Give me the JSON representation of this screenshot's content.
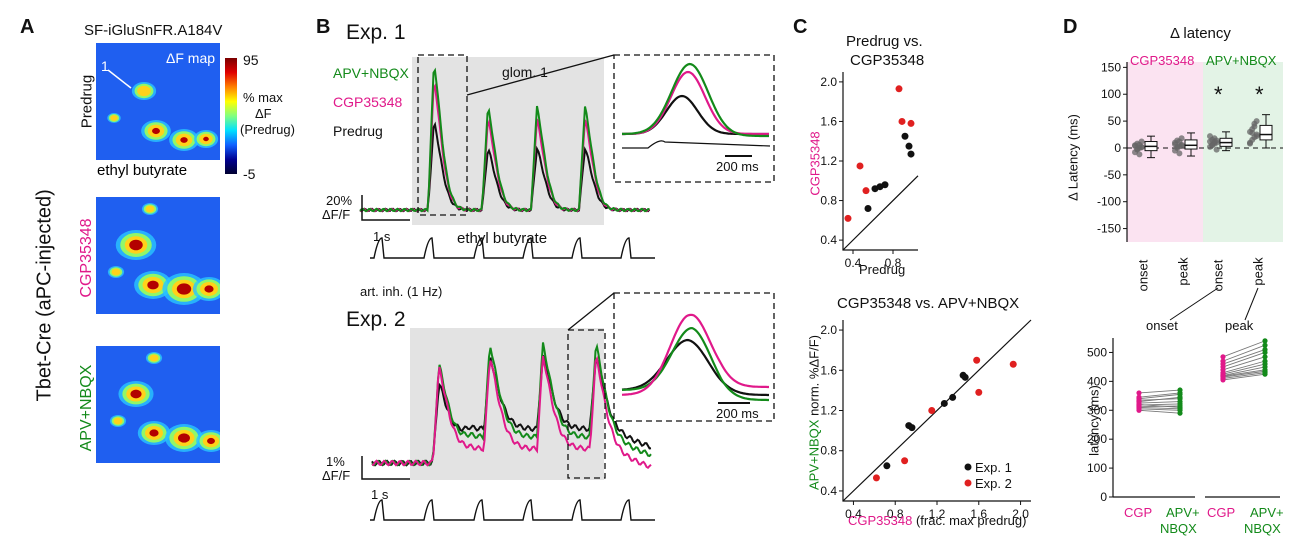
{
  "colors": {
    "apv": "#138a1a",
    "cgp": "#e0198a",
    "predrug": "#111111",
    "exp1": "#111111",
    "exp2": "#e02020",
    "cgp_bg": "#fbe3f1",
    "apv_bg": "#e3f3e6",
    "gray_bg": "#e3e3e3",
    "heat_bg": "#1f5ff0"
  },
  "panelA": {
    "label": "A",
    "title": "SF-iGluSnFR.A184V",
    "side_label": "Tbet-Cre (aPC-injected)",
    "map_label": "ΔF map",
    "glom_label": "1",
    "odor_label": "ethyl butyrate",
    "row_labels": [
      "Predrug",
      "CGP35348",
      "APV+NBQX"
    ],
    "colorbar": {
      "max": "95",
      "min": "-5",
      "label_lines": [
        "% max",
        "ΔF",
        "(Predrug)"
      ]
    }
  },
  "panelB": {
    "label": "B",
    "exp1_title": "Exp. 1",
    "exp2_title": "Exp. 2",
    "legend": [
      "APV+NBQX",
      "CGP35348",
      "Predrug"
    ],
    "glom_label": "glom. 1",
    "odor_label": "ethyl butyrate",
    "inhalation_label": "art. inh. (1 Hz)",
    "exp1_scale": {
      "amp": "20%",
      "unit": "ΔF/F",
      "time": "1 s"
    },
    "exp2_scale": {
      "amp": "1%",
      "unit": "ΔF/F",
      "time": "1 s"
    },
    "inset_scale": "200 ms"
  },
  "panelC": {
    "label": "C",
    "top_title_lines": [
      "Predrug vs.",
      "CGP35348"
    ],
    "bottom_title": "CGP35348 vs. APV+NBQX",
    "top_xlabel": "Predrug",
    "top_ylabel": "CGP35348",
    "bottom_xlabel_drug": "CGP35348",
    "bottom_xlabel_rest": " (frac. max predrug)",
    "bottom_ylabel_drug": "APV+NBQX",
    "bottom_ylabel_rest": " norm. %ΔF/F)",
    "legend": [
      "Exp. 1",
      "Exp. 2"
    ]
  },
  "panelD": {
    "label": "D",
    "title": "Δ latency",
    "group_labels": [
      "CGP35348",
      "APV+NBQX"
    ],
    "box_xlabels": [
      "onset",
      "peak",
      "onset",
      "peak"
    ],
    "box_ylabel": "Δ Latency (ms)",
    "stars": [
      "*",
      "*"
    ],
    "bottom_group_labels": [
      "onset",
      "peak"
    ],
    "bottom_ylabel": "latency (ms)",
    "bottom_xlabels": [
      "CGP",
      "APV+",
      "NBQX",
      "CGP",
      "APV+",
      "NBQX"
    ]
  },
  "chart_data": [
    {
      "type": "scatter",
      "title": "Predrug vs. CGP35348",
      "xlabel": "Predrug",
      "ylabel": "CGP35348",
      "xlim": [
        0.3,
        1.05
      ],
      "ylim": [
        0.3,
        2.1
      ],
      "xticks": [
        0.4,
        0.8
      ],
      "yticks": [
        0.4,
        0.8,
        1.2,
        1.6,
        2.0
      ],
      "unity_line": true,
      "series": [
        {
          "name": "Exp. 1",
          "points": [
            [
              0.55,
              0.72
            ],
            [
              0.62,
              0.92
            ],
            [
              0.67,
              0.94
            ],
            [
              0.72,
              0.96
            ],
            [
              0.92,
              1.45
            ],
            [
              0.96,
              1.35
            ],
            [
              0.98,
              1.27
            ]
          ]
        },
        {
          "name": "Exp. 2",
          "points": [
            [
              0.35,
              0.62
            ],
            [
              0.47,
              1.15
            ],
            [
              0.53,
              0.9
            ],
            [
              0.86,
              1.93
            ],
            [
              0.89,
              1.6
            ],
            [
              0.98,
              1.58
            ]
          ]
        }
      ]
    },
    {
      "type": "scatter",
      "title": "CGP35348 vs. APV+NBQX",
      "xlabel": "CGP35348 (frac. max predrug)",
      "ylabel": "APV+NBQX norm. %ΔF/F)",
      "xlim": [
        0.3,
        2.1
      ],
      "ylim": [
        0.3,
        2.1
      ],
      "xticks": [
        0.4,
        0.8,
        1.2,
        1.6,
        2.0
      ],
      "yticks": [
        0.4,
        0.8,
        1.2,
        1.6,
        2.0
      ],
      "unity_line": true,
      "series": [
        {
          "name": "Exp. 1",
          "points": [
            [
              0.72,
              0.65
            ],
            [
              0.93,
              1.05
            ],
            [
              0.96,
              1.03
            ],
            [
              1.27,
              1.27
            ],
            [
              1.35,
              1.33
            ],
            [
              1.45,
              1.55
            ],
            [
              1.47,
              1.53
            ]
          ]
        },
        {
          "name": "Exp. 2",
          "points": [
            [
              0.62,
              0.53
            ],
            [
              0.89,
              0.7
            ],
            [
              1.15,
              1.2
            ],
            [
              1.58,
              1.7
            ],
            [
              1.6,
              1.38
            ],
            [
              1.93,
              1.66
            ]
          ]
        }
      ]
    },
    {
      "type": "box",
      "title": "Δ latency",
      "ylabel": "Δ Latency (ms)",
      "ylim": [
        -175,
        160
      ],
      "yticks": [
        150,
        100,
        50,
        0,
        -50,
        -100,
        -150
      ],
      "categories": [
        "onset",
        "peak",
        "onset",
        "peak"
      ],
      "groups": [
        "CGP35348",
        "CGP35348",
        "APV+NBQX",
        "APV+NBQX"
      ],
      "boxes": [
        {
          "q1": -5,
          "median": 3,
          "q3": 12,
          "whisker_low": -18,
          "whisker_high": 22,
          "points": [
            -8,
            -3,
            0,
            2,
            5,
            8,
            -12,
            12,
            4,
            -2,
            6,
            1
          ]
        },
        {
          "q1": -2,
          "median": 5,
          "q3": 15,
          "whisker_low": -15,
          "whisker_high": 28,
          "points": [
            -5,
            0,
            3,
            6,
            10,
            14,
            -10,
            18,
            7,
            2,
            12,
            4
          ]
        },
        {
          "q1": 3,
          "median": 10,
          "q3": 18,
          "whisker_low": -5,
          "whisker_high": 30,
          "points": [
            2,
            5,
            8,
            10,
            12,
            15,
            18,
            -3,
            22,
            6,
            11,
            14
          ]
        },
        {
          "q1": 15,
          "median": 25,
          "q3": 42,
          "whisker_low": 0,
          "whisker_high": 62,
          "points": [
            10,
            15,
            20,
            25,
            30,
            35,
            45,
            50,
            8,
            28,
            40,
            22
          ]
        }
      ],
      "significance": [
        "",
        "",
        "*",
        "*"
      ]
    },
    {
      "type": "paired-scatter",
      "ylabel": "latency (ms)",
      "ylim": [
        0,
        550
      ],
      "yticks": [
        0,
        100,
        200,
        300,
        400,
        500
      ],
      "groups": [
        {
          "name": "onset",
          "conditions": [
            "CGP",
            "APV+NBQX"
          ],
          "pairs": [
            [
              360,
              370
            ],
            [
              345,
              360
            ],
            [
              340,
              355
            ],
            [
              335,
              340
            ],
            [
              330,
              345
            ],
            [
              325,
              330
            ],
            [
              320,
              310
            ],
            [
              318,
              322
            ],
            [
              312,
              315
            ],
            [
              310,
              305
            ],
            [
              305,
              300
            ],
            [
              300,
              290
            ]
          ]
        },
        {
          "name": "peak",
          "conditions": [
            "CGP",
            "APV+NBQX"
          ],
          "pairs": [
            [
              485,
              540
            ],
            [
              470,
              525
            ],
            [
              460,
              510
            ],
            [
              450,
              500
            ],
            [
              440,
              485
            ],
            [
              430,
              470
            ],
            [
              425,
              460
            ],
            [
              420,
              450
            ],
            [
              418,
              440
            ],
            [
              415,
              435
            ],
            [
              410,
              430
            ],
            [
              405,
              425
            ]
          ]
        }
      ]
    }
  ]
}
